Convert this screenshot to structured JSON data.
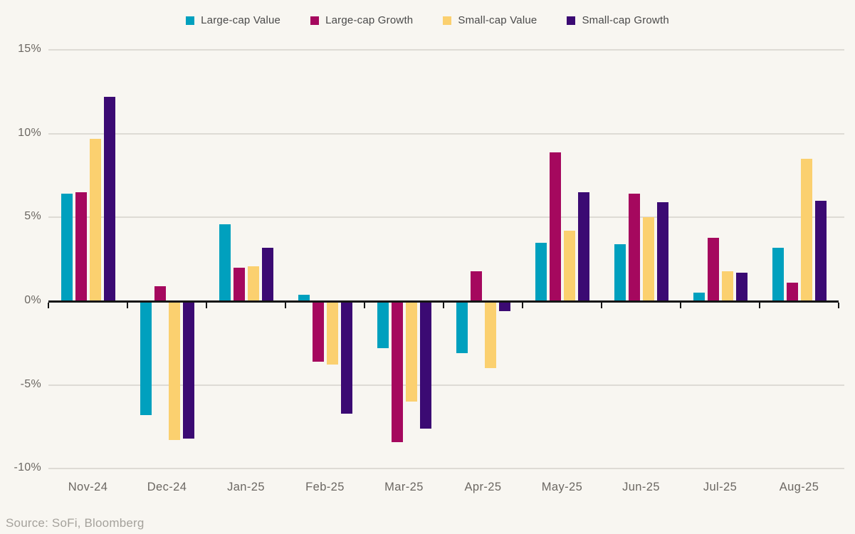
{
  "page": {
    "background_color": "#F8F6F1",
    "gridline_color": "#DEDBD5",
    "axis_color": "#151515",
    "tick_label_color": "#6B6762",
    "legend_text_color": "#4A4A4A"
  },
  "chart_data": {
    "type": "bar",
    "title": "",
    "xlabel": "",
    "ylabel": "",
    "categories": [
      "Nov-24",
      "Dec-24",
      "Jan-25",
      "Feb-25",
      "Mar-25",
      "Apr-25",
      "May-25",
      "Jun-25",
      "Jul-25",
      "Aug-25"
    ],
    "series": [
      {
        "name": "Large-cap Value",
        "color": "#00A0BE",
        "values": [
          6.4,
          -6.8,
          4.6,
          0.4,
          -2.8,
          -3.1,
          3.5,
          3.4,
          0.5,
          3.2
        ]
      },
      {
        "name": "Large-cap Growth",
        "color": "#A5085E",
        "values": [
          6.5,
          0.9,
          2.0,
          -3.6,
          -8.4,
          1.8,
          8.9,
          6.4,
          3.8,
          1.1
        ]
      },
      {
        "name": "Small-cap Value",
        "color": "#FBD06F",
        "values": [
          9.7,
          -8.3,
          2.1,
          -3.8,
          -6.0,
          -4.0,
          4.2,
          5.0,
          1.8,
          8.5
        ]
      },
      {
        "name": "Small-cap Growth",
        "color": "#3B0A73",
        "values": [
          12.2,
          -8.2,
          3.2,
          -6.7,
          -7.6,
          -0.6,
          6.5,
          5.9,
          1.7,
          6.0
        ]
      }
    ],
    "yticks": [
      15,
      10,
      5,
      0,
      -5,
      -10
    ],
    "ytick_labels": [
      "15%",
      "10%",
      "5%",
      "0%",
      "-5%",
      "-10%"
    ],
    "ylim": [
      -10,
      15
    ],
    "grid": true,
    "legend_position": "top"
  },
  "footer": {
    "source": "Source: SoFi, Bloomberg"
  }
}
